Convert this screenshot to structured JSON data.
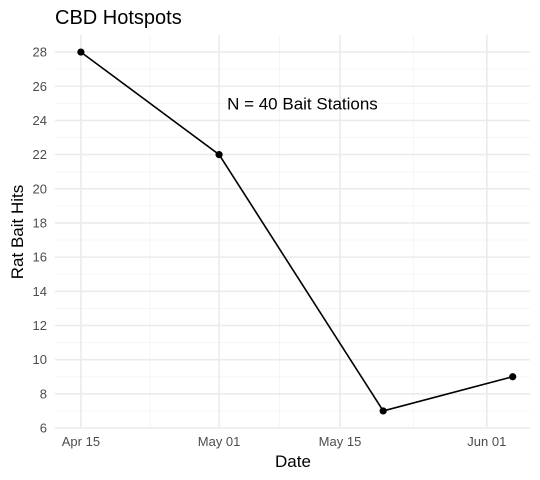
{
  "chart_data": {
    "type": "line",
    "title": "CBD Hotspots",
    "xlabel": "Date",
    "ylabel": "Rat Bait Hits",
    "annotation": "N = 40 Bait Stations",
    "annotation_at": {
      "x": "2021-05-01",
      "y": 25
    },
    "x_ticks": [
      {
        "date": "2021-04-15",
        "label": "Apr 15"
      },
      {
        "date": "2021-05-01",
        "label": "May 01"
      },
      {
        "date": "2021-05-15",
        "label": "May 15"
      },
      {
        "date": "2021-06-01",
        "label": "Jun 01"
      }
    ],
    "y_ticks": [
      6,
      8,
      10,
      12,
      14,
      16,
      18,
      20,
      22,
      24,
      26,
      28
    ],
    "xlim": [
      "2021-04-12",
      "2021-06-06"
    ],
    "ylim": [
      6,
      29
    ],
    "grid": true,
    "series": [
      {
        "points": [
          {
            "x": "2021-04-15",
            "y": 28
          },
          {
            "x": "2021-05-01",
            "y": 22
          },
          {
            "x": "2021-05-20",
            "y": 7
          },
          {
            "x": "2021-06-04",
            "y": 9
          }
        ],
        "color": "#000000"
      }
    ],
    "colors": {
      "grid_major": "#ebebeb",
      "grid_minor": "#f5f5f5",
      "tick_text": "#4d4d4d",
      "text": "#000000"
    }
  }
}
